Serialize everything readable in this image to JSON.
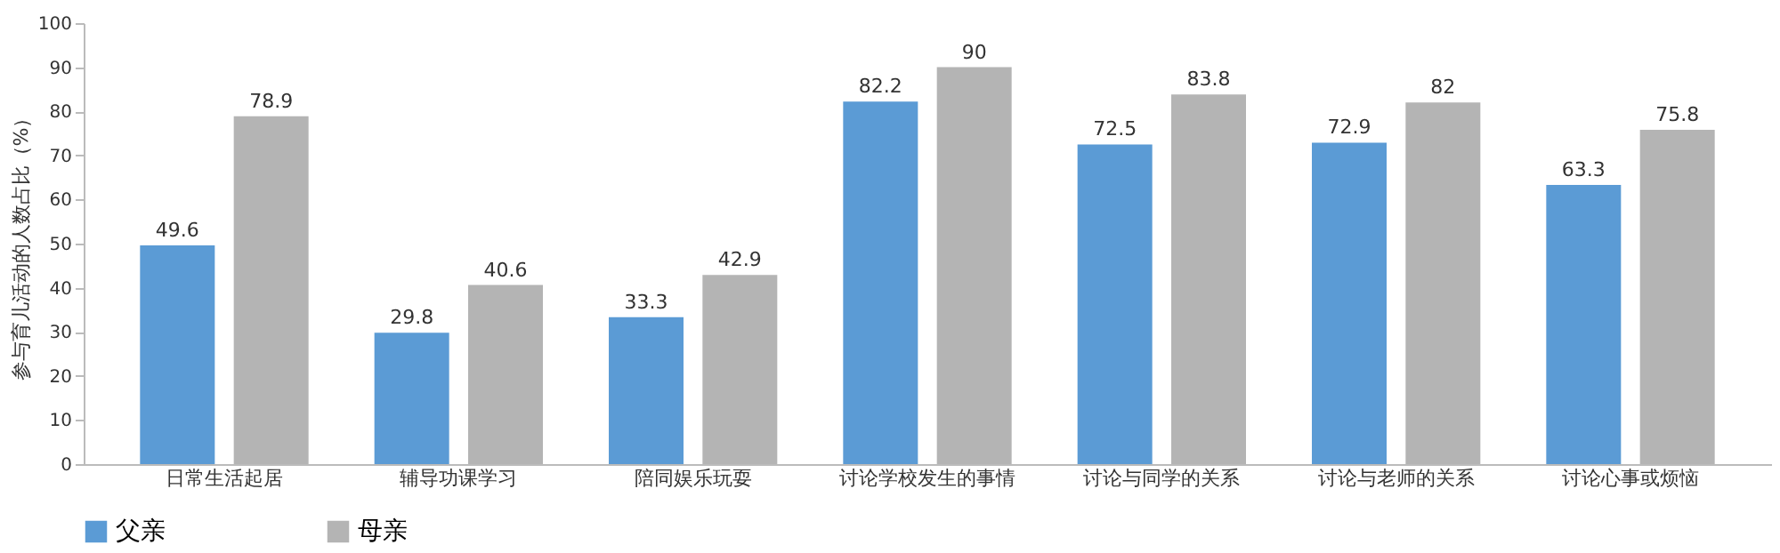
{
  "chart_data": {
    "type": "bar",
    "ylabel": "参与育儿活动的人数占比（%）",
    "categories": [
      "日常生活起居",
      "辅导功课学习",
      "陪同娱乐玩耍",
      "讨论学校发生的事情",
      "讨论与同学的关系",
      "讨论与老师的关系",
      "讨论心事或烦恼"
    ],
    "series": [
      {
        "name": "父亲",
        "color": "#5b9bd5",
        "values": [
          49.6,
          29.8,
          33.3,
          82.2,
          72.5,
          72.9,
          63.3
        ]
      },
      {
        "name": "母亲",
        "color": "#b4b4b4",
        "values": [
          78.9,
          40.6,
          42.9,
          90,
          83.8,
          82,
          75.8
        ]
      }
    ],
    "ylim": [
      0,
      100
    ],
    "yticks": [
      0,
      10,
      20,
      30,
      40,
      50,
      60,
      70,
      80,
      90,
      100
    ],
    "data_labels": true,
    "grid": false,
    "legend": "bottom"
  }
}
